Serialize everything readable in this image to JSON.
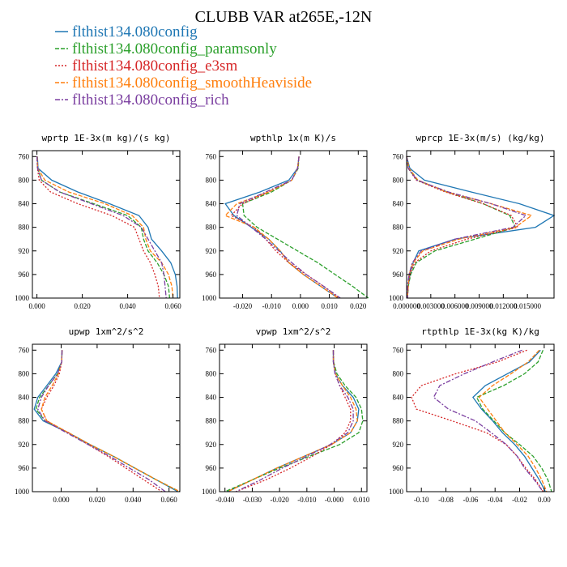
{
  "title": "CLUBB VAR at265E,-12N",
  "legend": [
    {
      "name": "flthist134.080config",
      "color": "#1f77b4"
    },
    {
      "name": "flthist134.080config_paramsonly",
      "color": "#2ca02c"
    },
    {
      "name": "flthist134.080config_e3sm",
      "color": "#d62728"
    },
    {
      "name": "flthist134.080config_smoothHeaviside",
      "color": "#ff7f0e"
    },
    {
      "name": "flthist134.080config_rich",
      "color": "#7b3fa0"
    }
  ],
  "chart_data": [
    {
      "type": "line",
      "title": "wprtp  1E-3x(m kg)/(s kg)",
      "xlim": [
        -0.002,
        0.063
      ],
      "ylim": [
        1000,
        750
      ],
      "xticks": [
        "0.000",
        "0.020",
        "0.040",
        "0.060"
      ],
      "xtick_values": [
        0,
        0.02,
        0.04,
        0.06
      ],
      "yticks": [
        "760",
        "800",
        "840",
        "880",
        "920",
        "960",
        "1000"
      ],
      "ytick_values": [
        760,
        800,
        840,
        880,
        920,
        960,
        1000
      ],
      "y": [
        760,
        780,
        800,
        820,
        840,
        860,
        880,
        900,
        920,
        940,
        960,
        980,
        1000
      ],
      "series": [
        {
          "x": [
            0.0002,
            0.0005,
            0.0065,
            0.018,
            0.032,
            0.045,
            0.049,
            0.0505,
            0.055,
            0.059,
            0.061,
            0.0618,
            0.062
          ]
        },
        {
          "x": [
            0.0001,
            0.0003,
            0.002,
            0.01,
            0.025,
            0.04,
            0.046,
            0.047,
            0.049,
            0.053,
            0.056,
            0.058,
            0.0585
          ]
        },
        {
          "x": [
            0,
            0.0002,
            0.001,
            0.006,
            0.018,
            0.033,
            0.043,
            0.045,
            0.047,
            0.05,
            0.052,
            0.0535,
            0.054
          ]
        },
        {
          "x": [
            0.0001,
            0.0004,
            0.0035,
            0.014,
            0.03,
            0.042,
            0.047,
            0.048,
            0.05,
            0.055,
            0.058,
            0.0595,
            0.06
          ]
        },
        {
          "x": [
            0,
            0.0003,
            0.002,
            0.01,
            0.024,
            0.038,
            0.046,
            0.049,
            0.052,
            0.055,
            0.056,
            0.0565,
            0.057
          ]
        }
      ]
    },
    {
      "type": "line",
      "title": "wpthlp  1x(m K)/s",
      "xlim": [
        -0.028,
        0.023
      ],
      "ylim": [
        1000,
        750
      ],
      "xticks": [
        "-0.020",
        "-0.010",
        "0.000",
        "0.010",
        "0.020"
      ],
      "xtick_values": [
        -0.02,
        -0.01,
        0,
        0.01,
        0.02
      ],
      "yticks": [
        "760",
        "800",
        "840",
        "880",
        "920",
        "960",
        "1000"
      ],
      "ytick_values": [
        760,
        800,
        840,
        880,
        920,
        960,
        1000
      ],
      "y": [
        760,
        780,
        800,
        820,
        840,
        860,
        880,
        900,
        920,
        940,
        960,
        980,
        1000
      ],
      "series": [
        {
          "x": [
            -0.0005,
            -0.001,
            -0.004,
            -0.014,
            -0.026,
            -0.023,
            -0.017,
            -0.011,
            -0.007,
            -0.004,
            0.001,
            0.007,
            0.013
          ]
        },
        {
          "x": [
            -0.0005,
            -0.0008,
            -0.003,
            -0.01,
            -0.02,
            -0.0195,
            -0.015,
            -0.008,
            -0.001,
            0.006,
            0.012,
            0.018,
            0.0235
          ]
        },
        {
          "x": [
            -0.0005,
            -0.001,
            -0.003,
            -0.011,
            -0.02,
            -0.024,
            -0.016,
            -0.012,
            -0.0085,
            -0.004,
            0.002,
            0.008,
            0.0135
          ]
        },
        {
          "x": [
            -0.0005,
            -0.001,
            -0.003,
            -0.011,
            -0.022,
            -0.026,
            -0.016,
            -0.011,
            -0.007,
            -0.004,
            0.001,
            0.007,
            0.013
          ]
        },
        {
          "x": [
            -0.0005,
            -0.001,
            -0.003,
            -0.012,
            -0.021,
            -0.022,
            -0.017,
            -0.012,
            -0.0075,
            -0.003,
            0.002,
            0.008,
            0.0138
          ]
        }
      ]
    },
    {
      "type": "line",
      "title": "wprcp  1E-3x(m/s) (kg/kg)",
      "xlim": [
        0,
        0.0183
      ],
      "ylim": [
        1000,
        750
      ],
      "xticks": [
        "0.000000",
        "0.003000",
        "0.006000",
        "0.009000",
        "0.012000",
        "0.015000"
      ],
      "xtick_values": [
        0,
        0.003,
        0.006,
        0.009,
        0.012,
        0.015
      ],
      "yticks": [
        "760",
        "800",
        "840",
        "880",
        "920",
        "960",
        "1000"
      ],
      "ytick_values": [
        760,
        800,
        840,
        880,
        920,
        960,
        1000
      ],
      "y": [
        760,
        780,
        800,
        820,
        840,
        860,
        880,
        900,
        920,
        940,
        960,
        980,
        1000
      ],
      "series": [
        {
          "x": [
            0,
            0.0004,
            0.0022,
            0.008,
            0.014,
            0.0183,
            0.016,
            0.006,
            0.0015,
            0.0008,
            0.0004,
            0.0002,
            0.0001
          ]
        },
        {
          "x": [
            0,
            0.0002,
            0.0013,
            0.005,
            0.0095,
            0.0128,
            0.0135,
            0.0085,
            0.0035,
            0.0012,
            0.0005,
            0.0002,
            0.0001
          ]
        },
        {
          "x": [
            0,
            0.0002,
            0.0012,
            0.0048,
            0.0095,
            0.013,
            0.0138,
            0.0075,
            0.003,
            0.001,
            0.0004,
            0.0002,
            0.0001
          ]
        },
        {
          "x": [
            0,
            0.0003,
            0.0014,
            0.005,
            0.0105,
            0.0155,
            0.0135,
            0.0065,
            0.002,
            0.0008,
            0.0003,
            0.0002,
            0.0001
          ]
        },
        {
          "x": [
            0,
            0.0002,
            0.0013,
            0.0052,
            0.0105,
            0.0148,
            0.0132,
            0.006,
            0.0018,
            0.0007,
            0.0003,
            0.0001,
            0.0001
          ]
        }
      ]
    },
    {
      "type": "line",
      "title": "upwp  1xm^2/s^2",
      "xlim": [
        -0.016,
        0.066
      ],
      "ylim": [
        1000,
        750
      ],
      "xticks": [
        "0.000",
        "0.020",
        "0.040",
        "0.060"
      ],
      "xtick_values": [
        0,
        0.02,
        0.04,
        0.06
      ],
      "yticks": [
        "760",
        "800",
        "840",
        "880",
        "920",
        "960",
        "1000"
      ],
      "ytick_values": [
        760,
        800,
        840,
        880,
        920,
        960,
        1000
      ],
      "y": [
        760,
        780,
        800,
        820,
        840,
        860,
        880,
        900,
        920,
        940,
        960,
        980,
        1000
      ],
      "series": [
        {
          "x": [
            0.0005,
            0.0003,
            -0.003,
            -0.008,
            -0.013,
            -0.015,
            -0.01,
            0.004,
            0.016,
            0.029,
            0.041,
            0.053,
            0.065
          ]
        },
        {
          "x": [
            0.0005,
            0.0003,
            -0.002,
            -0.007,
            -0.012,
            -0.014,
            -0.009,
            0.004,
            0.016,
            0.029,
            0.041,
            0.053,
            0.066
          ]
        },
        {
          "x": [
            0.0005,
            0.0003,
            -0.001,
            -0.004,
            -0.008,
            -0.011,
            -0.008,
            0.004,
            0.015,
            0.026,
            0.036,
            0.046,
            0.056
          ]
        },
        {
          "x": [
            0.0005,
            0.0003,
            -0.0015,
            -0.005,
            -0.009,
            -0.011,
            -0.008,
            0.004,
            0.016,
            0.029,
            0.041,
            0.053,
            0.066
          ]
        },
        {
          "x": [
            0.0005,
            0.0003,
            -0.002,
            -0.007,
            -0.011,
            -0.013,
            -0.009,
            0.003,
            0.015,
            0.027,
            0.038,
            0.049,
            0.058
          ]
        }
      ]
    },
    {
      "type": "line",
      "title": "vpwp  1xm^2/s^2",
      "xlim": [
        -0.042,
        0.012
      ],
      "ylim": [
        1000,
        750
      ],
      "xticks": [
        "-0.040",
        "-0.030",
        "-0.020",
        "-0.010",
        "-0.000",
        "0.010"
      ],
      "xtick_values": [
        -0.04,
        -0.03,
        -0.02,
        -0.01,
        0,
        0.01
      ],
      "yticks": [
        "760",
        "800",
        "840",
        "880",
        "920",
        "960",
        "1000"
      ],
      "ytick_values": [
        760,
        800,
        840,
        880,
        920,
        960,
        1000
      ],
      "y": [
        760,
        780,
        800,
        820,
        840,
        860,
        880,
        900,
        920,
        940,
        960,
        980,
        1000
      ],
      "series": [
        {
          "x": [
            -0.0003,
            -0.0003,
            0.0005,
            0.003,
            0.007,
            0.009,
            0.0085,
            0.006,
            -0.001,
            -0.011,
            -0.021,
            -0.03,
            -0.039
          ]
        },
        {
          "x": [
            -0.0003,
            -0.0002,
            0.001,
            0.004,
            0.008,
            0.01,
            0.0105,
            0.009,
            0.002,
            -0.009,
            -0.02,
            -0.03,
            -0.04
          ]
        },
        {
          "x": [
            -0.0003,
            -0.0002,
            0.0003,
            0.002,
            0.004,
            0.006,
            0.006,
            0.004,
            -0.001,
            -0.008,
            -0.016,
            -0.025,
            -0.036
          ]
        },
        {
          "x": [
            -0.0003,
            -0.0003,
            0.0005,
            0.003,
            0.006,
            0.008,
            0.0085,
            0.006,
            -0.001,
            -0.011,
            -0.021,
            -0.03,
            -0.039
          ]
        },
        {
          "x": [
            -0.0003,
            -0.0003,
            0.0003,
            0.002,
            0.005,
            0.007,
            0.007,
            0.005,
            -0.0015,
            -0.01,
            -0.019,
            -0.027,
            -0.036
          ]
        }
      ]
    },
    {
      "type": "line",
      "title": "rtpthlp  1E-3x(kg K)/kg",
      "xlim": [
        -0.112,
        0.008
      ],
      "ylim": [
        1000,
        750
      ],
      "xticks": [
        "-0.10",
        "-0.08",
        "-0.06",
        "-0.04",
        "-0.02",
        "0.00"
      ],
      "xtick_values": [
        -0.1,
        -0.08,
        -0.06,
        -0.04,
        -0.02,
        0
      ],
      "yticks": [
        "760",
        "800",
        "840",
        "880",
        "920",
        "960",
        "1000"
      ],
      "ytick_values": [
        760,
        800,
        840,
        880,
        920,
        960,
        1000
      ],
      "y": [
        760,
        780,
        800,
        820,
        840,
        860,
        880,
        900,
        920,
        940,
        960,
        980,
        1000
      ],
      "series": [
        {
          "x": [
            -0.003,
            -0.012,
            -0.03,
            -0.048,
            -0.058,
            -0.051,
            -0.042,
            -0.034,
            -0.024,
            -0.016,
            -0.01,
            -0.004,
            0.001
          ]
        },
        {
          "x": [
            -0.001,
            -0.005,
            -0.016,
            -0.033,
            -0.055,
            -0.05,
            -0.041,
            -0.032,
            -0.02,
            -0.009,
            -0.002,
            0.003,
            0.006
          ]
        },
        {
          "x": [
            -0.014,
            -0.038,
            -0.072,
            -0.1,
            -0.108,
            -0.104,
            -0.075,
            -0.047,
            -0.031,
            -0.022,
            -0.015,
            -0.007,
            -0.001
          ]
        },
        {
          "x": [
            -0.004,
            -0.013,
            -0.027,
            -0.042,
            -0.053,
            -0.046,
            -0.039,
            -0.032,
            -0.022,
            -0.013,
            -0.007,
            -0.002,
            0.002
          ]
        },
        {
          "x": [
            -0.018,
            -0.042,
            -0.065,
            -0.085,
            -0.09,
            -0.078,
            -0.056,
            -0.043,
            -0.031,
            -0.022,
            -0.016,
            -0.008,
            -0.001
          ]
        }
      ]
    }
  ]
}
